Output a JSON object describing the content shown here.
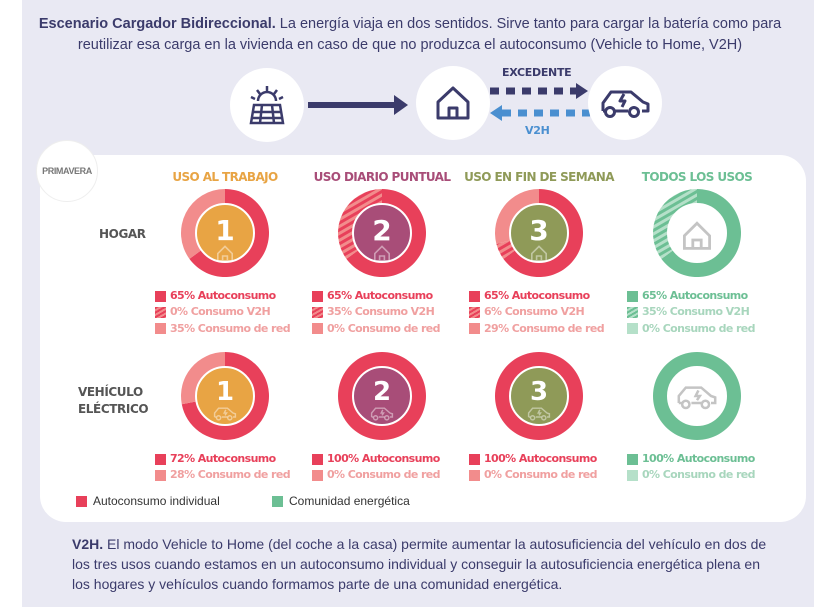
{
  "intro": {
    "bold": "Escenario Cargador Bidireccional.",
    "text": " La energía viaja en dos sentidos. Sirve tanto para cargar la batería como para reutilizar esa carga en la vivienda en caso de que no produzca el autoconsumo (Vehicle to Home, V2H)"
  },
  "diagram": {
    "excedente": "EXCEDENTE",
    "v2h": "V2H",
    "icons": [
      "solar-panel-icon",
      "house-icon",
      "electric-car-icon"
    ]
  },
  "logo": "PRIMAVERA",
  "columns": [
    {
      "title": "USO AL TRABAJO",
      "color": "#e8a444",
      "num": "1"
    },
    {
      "title": "USO DIARIO PUNTUAL",
      "color": "#a84d78",
      "num": "2"
    },
    {
      "title": "USO EN FIN DE SEMANA",
      "color": "#8f9a58",
      "num": "3"
    },
    {
      "title": "TODOS LOS USOS",
      "color": "#6cbf94",
      "num": ""
    }
  ],
  "rows": [
    {
      "label": "HOGAR"
    },
    {
      "label1": "VEHÍCULO",
      "label2": "ELÉCTRICO"
    }
  ],
  "hogar": [
    {
      "auto": 65,
      "v2h": 0,
      "red": 35,
      "texts": [
        "65% Autoconsumo",
        "0% Consumo V2H",
        "35% Consumo de red"
      ]
    },
    {
      "auto": 65,
      "v2h": 35,
      "red": 0,
      "texts": [
        "65% Autoconsumo",
        "35% Consumo V2H",
        "0% Consumo de red"
      ]
    },
    {
      "auto": 65,
      "v2h": 6,
      "red": 29,
      "texts": [
        "65% Autoconsumo",
        "6% Consumo V2H",
        "29% Consumo de red"
      ]
    },
    {
      "auto": 65,
      "v2h": 35,
      "red": 0,
      "texts": [
        "65% Autoconsumo",
        "35% Consumo V2H",
        "0% Consumo de red"
      ]
    }
  ],
  "vehiculo": [
    {
      "auto": 72,
      "red": 28,
      "texts": [
        "72% Autoconsumo",
        "28% Consumo de red"
      ]
    },
    {
      "auto": 100,
      "red": 0,
      "texts": [
        "100% Autoconsumo",
        "0% Consumo de red"
      ]
    },
    {
      "auto": 100,
      "red": 0,
      "texts": [
        "100% Autoconsumo",
        "0% Consumo de red"
      ]
    },
    {
      "auto": 100,
      "red": 0,
      "texts": [
        "100% Autoconsumo",
        "0% Consumo de red"
      ]
    }
  ],
  "legend": {
    "individual": "Autoconsumo individual",
    "comunidad": "Comunidad energética"
  },
  "colors": {
    "red": "#e8405a",
    "redLight": "#f28c8c",
    "green": "#6cbf94",
    "greenLight": "#b5e0c9"
  },
  "footer": {
    "bold": "V2H.",
    "text": " El modo Vehicle to Home (del coche a la casa) permite aumentar la autosuficiencia del vehículo en dos de los tres usos cuando estamos en un autoconsumo individual y conseguir la autosuficiencia energética plena en los hogares y vehículos cuando formamos parte de una comunidad energética."
  }
}
